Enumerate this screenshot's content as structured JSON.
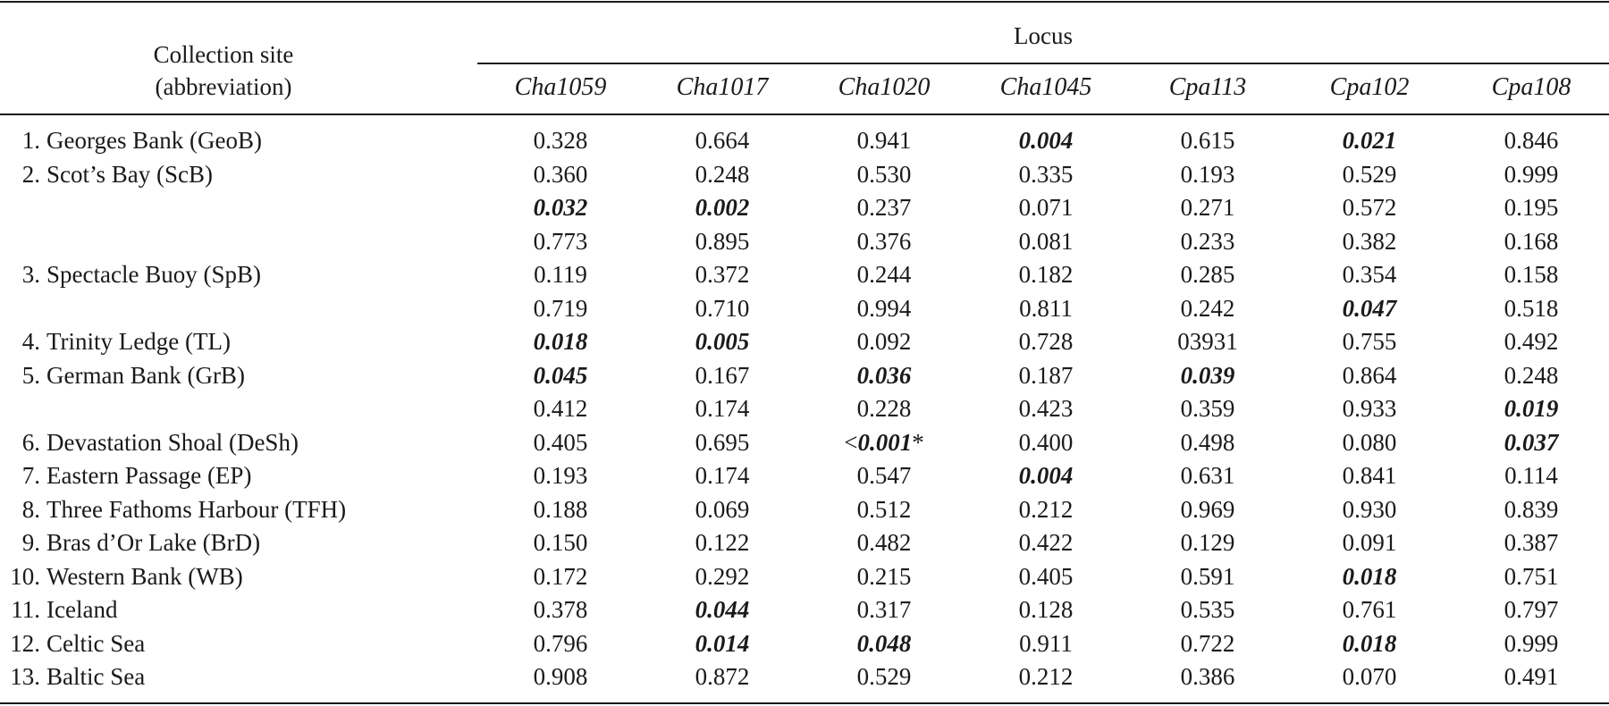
{
  "header": {
    "site_line1": "Collection site",
    "site_line2": "(abbreviation)",
    "locus": "Locus"
  },
  "loci": [
    "Cha1059",
    "Cha1017",
    "Cha1020",
    "Cha1045",
    "Cpa113",
    "Cpa102",
    "Cpa108"
  ],
  "rows": [
    {
      "num": "1.",
      "site": "Georges Bank (GeoB)",
      "values": [
        {
          "v": "0.328",
          "sig": false
        },
        {
          "v": "0.664",
          "sig": false
        },
        {
          "v": "0.941",
          "sig": false
        },
        {
          "v": "0.004",
          "sig": true
        },
        {
          "v": "0.615",
          "sig": false
        },
        {
          "v": "0.021",
          "sig": true
        },
        {
          "v": "0.846",
          "sig": false
        }
      ]
    },
    {
      "num": "2.",
      "site": "Scot’s Bay (ScB)",
      "values": [
        {
          "v": "0.360",
          "sig": false
        },
        {
          "v": "0.248",
          "sig": false
        },
        {
          "v": "0.530",
          "sig": false
        },
        {
          "v": "0.335",
          "sig": false
        },
        {
          "v": "0.193",
          "sig": false
        },
        {
          "v": "0.529",
          "sig": false
        },
        {
          "v": "0.999",
          "sig": false
        }
      ]
    },
    {
      "num": "",
      "site": "",
      "values": [
        {
          "v": "0.032",
          "sig": true
        },
        {
          "v": "0.002",
          "sig": true
        },
        {
          "v": "0.237",
          "sig": false
        },
        {
          "v": "0.071",
          "sig": false
        },
        {
          "v": "0.271",
          "sig": false
        },
        {
          "v": "0.572",
          "sig": false
        },
        {
          "v": "0.195",
          "sig": false
        }
      ]
    },
    {
      "num": "",
      "site": "",
      "values": [
        {
          "v": "0.773",
          "sig": false
        },
        {
          "v": "0.895",
          "sig": false
        },
        {
          "v": "0.376",
          "sig": false
        },
        {
          "v": "0.081",
          "sig": false
        },
        {
          "v": "0.233",
          "sig": false
        },
        {
          "v": "0.382",
          "sig": false
        },
        {
          "v": "0.168",
          "sig": false
        }
      ]
    },
    {
      "num": "3.",
      "site": "Spectacle Buoy (SpB)",
      "values": [
        {
          "v": "0.119",
          "sig": false
        },
        {
          "v": "0.372",
          "sig": false
        },
        {
          "v": "0.244",
          "sig": false
        },
        {
          "v": "0.182",
          "sig": false
        },
        {
          "v": "0.285",
          "sig": false
        },
        {
          "v": "0.354",
          "sig": false
        },
        {
          "v": "0.158",
          "sig": false
        }
      ]
    },
    {
      "num": "",
      "site": "",
      "values": [
        {
          "v": "0.719",
          "sig": false
        },
        {
          "v": "0.710",
          "sig": false
        },
        {
          "v": "0.994",
          "sig": false
        },
        {
          "v": "0.811",
          "sig": false
        },
        {
          "v": "0.242",
          "sig": false
        },
        {
          "v": "0.047",
          "sig": true
        },
        {
          "v": "0.518",
          "sig": false
        }
      ]
    },
    {
      "num": "4.",
      "site": "Trinity Ledge (TL)",
      "values": [
        {
          "v": "0.018",
          "sig": true
        },
        {
          "v": "0.005",
          "sig": true
        },
        {
          "v": "0.092",
          "sig": false
        },
        {
          "v": "0.728",
          "sig": false
        },
        {
          "v": "03931",
          "sig": false
        },
        {
          "v": "0.755",
          "sig": false
        },
        {
          "v": "0.492",
          "sig": false
        }
      ]
    },
    {
      "num": "5.",
      "site": "German Bank (GrB)",
      "values": [
        {
          "v": "0.045",
          "sig": true
        },
        {
          "v": "0.167",
          "sig": false
        },
        {
          "v": "0.036",
          "sig": true
        },
        {
          "v": "0.187",
          "sig": false
        },
        {
          "v": "0.039",
          "sig": true
        },
        {
          "v": "0.864",
          "sig": false
        },
        {
          "v": "0.248",
          "sig": false
        }
      ]
    },
    {
      "num": "",
      "site": "",
      "values": [
        {
          "v": "0.412",
          "sig": false
        },
        {
          "v": "0.174",
          "sig": false
        },
        {
          "v": "0.228",
          "sig": false
        },
        {
          "v": "0.423",
          "sig": false
        },
        {
          "v": "0.359",
          "sig": false
        },
        {
          "v": "0.933",
          "sig": false
        },
        {
          "v": "0.019",
          "sig": true
        }
      ]
    },
    {
      "num": "6.",
      "site": "Devastation Shoal (DeSh)",
      "values": [
        {
          "v": "0.405",
          "sig": false
        },
        {
          "v": "0.695",
          "sig": false
        },
        {
          "v": "<0.001*",
          "sig": true,
          "prefix": "<",
          "core": "0.001",
          "suffix": "*"
        },
        {
          "v": "0.400",
          "sig": false
        },
        {
          "v": "0.498",
          "sig": false
        },
        {
          "v": "0.080",
          "sig": false
        },
        {
          "v": "0.037",
          "sig": true
        }
      ]
    },
    {
      "num": "7.",
      "site": "Eastern Passage (EP)",
      "values": [
        {
          "v": "0.193",
          "sig": false
        },
        {
          "v": "0.174",
          "sig": false
        },
        {
          "v": "0.547",
          "sig": false
        },
        {
          "v": "0.004",
          "sig": true
        },
        {
          "v": "0.631",
          "sig": false
        },
        {
          "v": "0.841",
          "sig": false
        },
        {
          "v": "0.114",
          "sig": false
        }
      ]
    },
    {
      "num": "8.",
      "site": "Three Fathoms Harbour (TFH)",
      "values": [
        {
          "v": "0.188",
          "sig": false
        },
        {
          "v": "0.069",
          "sig": false
        },
        {
          "v": "0.512",
          "sig": false
        },
        {
          "v": "0.212",
          "sig": false
        },
        {
          "v": "0.969",
          "sig": false
        },
        {
          "v": "0.930",
          "sig": false
        },
        {
          "v": "0.839",
          "sig": false
        }
      ]
    },
    {
      "num": "9.",
      "site": "Bras d’Or Lake (BrD)",
      "values": [
        {
          "v": "0.150",
          "sig": false
        },
        {
          "v": "0.122",
          "sig": false
        },
        {
          "v": "0.482",
          "sig": false
        },
        {
          "v": "0.422",
          "sig": false
        },
        {
          "v": "0.129",
          "sig": false
        },
        {
          "v": "0.091",
          "sig": false
        },
        {
          "v": "0.387",
          "sig": false
        }
      ]
    },
    {
      "num": "10.",
      "site": "Western Bank (WB)",
      "values": [
        {
          "v": "0.172",
          "sig": false
        },
        {
          "v": "0.292",
          "sig": false
        },
        {
          "v": "0.215",
          "sig": false
        },
        {
          "v": "0.405",
          "sig": false
        },
        {
          "v": "0.591",
          "sig": false
        },
        {
          "v": "0.018",
          "sig": true
        },
        {
          "v": "0.751",
          "sig": false
        }
      ]
    },
    {
      "num": "11.",
      "site": "Iceland",
      "values": [
        {
          "v": "0.378",
          "sig": false
        },
        {
          "v": "0.044",
          "sig": true
        },
        {
          "v": "0.317",
          "sig": false
        },
        {
          "v": "0.128",
          "sig": false
        },
        {
          "v": "0.535",
          "sig": false
        },
        {
          "v": "0.761",
          "sig": false
        },
        {
          "v": "0.797",
          "sig": false
        }
      ]
    },
    {
      "num": "12.",
      "site": "Celtic Sea",
      "values": [
        {
          "v": "0.796",
          "sig": false
        },
        {
          "v": "0.014",
          "sig": true
        },
        {
          "v": "0.048",
          "sig": true
        },
        {
          "v": "0.911",
          "sig": false
        },
        {
          "v": "0.722",
          "sig": false
        },
        {
          "v": "0.018",
          "sig": true
        },
        {
          "v": "0.999",
          "sig": false
        }
      ]
    },
    {
      "num": "13.",
      "site": "Baltic Sea",
      "values": [
        {
          "v": "0.908",
          "sig": false
        },
        {
          "v": "0.872",
          "sig": false
        },
        {
          "v": "0.529",
          "sig": false
        },
        {
          "v": "0.212",
          "sig": false
        },
        {
          "v": "0.386",
          "sig": false
        },
        {
          "v": "0.070",
          "sig": false
        },
        {
          "v": "0.491",
          "sig": false
        }
      ]
    }
  ]
}
